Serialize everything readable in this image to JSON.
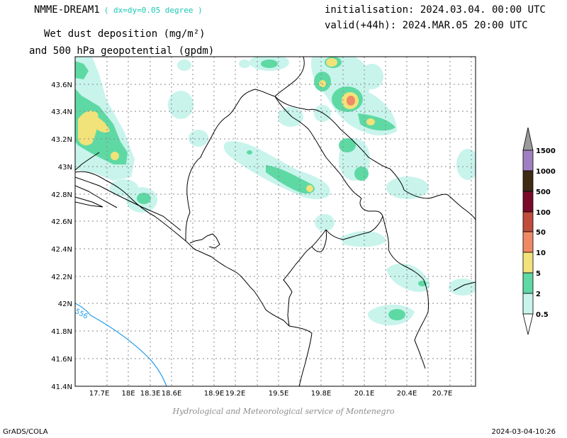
{
  "header": {
    "model_name": "NMME-DREAM1",
    "resolution": "( dx=dy=0.05 degree )",
    "title_line1": "Wet dust deposition (mg/m²)",
    "title_line2": "and 500 hPa geopotential (gpdm)",
    "initialisation": "initialisation: 2024.03.04. 00:00 UTC",
    "valid": "valid(+44h): 2024.MAR.05 20:00 UTC"
  },
  "map": {
    "lat_labels": [
      "43.6N",
      "43.4N",
      "43.2N",
      "43N",
      "42.8N",
      "42.6N",
      "42.4N",
      "42.2N",
      "42N",
      "41.8N",
      "41.6N",
      "41.4N"
    ],
    "lon_labels": [
      "17.7E",
      "18E",
      "18.3E",
      "18.6E",
      "18.9E",
      "19.2E",
      "19.5E",
      "19.8E",
      "20.1E",
      "20.4E",
      "20.7E"
    ],
    "lat_range": [
      41.4,
      43.7
    ],
    "lon_range": [
      17.55,
      20.95
    ],
    "contour_label": "556",
    "contour_color": "#1e9be8",
    "border_color": "#000000"
  },
  "colorbar": {
    "levels": [
      "1500",
      "1000",
      "500",
      "100",
      "50",
      "10",
      "5",
      "2",
      "0.5"
    ],
    "colors": [
      "#9b9b9b",
      "#a07fc0",
      "#3f2a14",
      "#7a0a2a",
      "#c04c3c",
      "#ef8a66",
      "#f2e27a",
      "#5ed9a4",
      "#c8f4ec"
    ]
  },
  "footer": {
    "credit": "Hydrological and Meteorological service of Montenegro",
    "software": "GrADS/COLA",
    "timestamp": "2024-03-04-10:26"
  }
}
